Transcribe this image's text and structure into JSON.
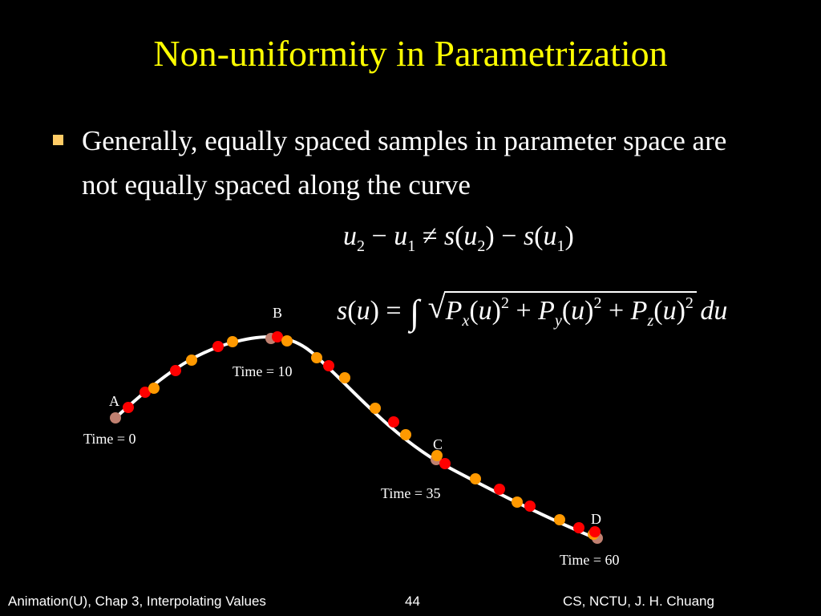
{
  "title": "Non-uniformity in Parametrization",
  "bullet": "Generally, equally spaced samples in parameter space are not equally spaced along the curve",
  "equation1": {
    "u": "u",
    "sub2": "2",
    "minus": "−",
    "sub1": "1",
    "neq": "≠",
    "s": "s",
    "lp": "(",
    "rp": ")"
  },
  "equation2": {
    "s": "s",
    "u": "u",
    "eq": "=",
    "integral": "∫",
    "P": "P",
    "x": "x",
    "y": "y",
    "z": "z",
    "sq": "2",
    "plus": "+",
    "du": "du"
  },
  "points": {
    "a": "A",
    "b": "B",
    "c": "C",
    "d": "D"
  },
  "time_labels": {
    "t0": "Time = 0",
    "t10": "Time = 10",
    "t35": "Time = 35",
    "t60": "Time = 60"
  },
  "colors": {
    "red_dot": "#ff0000",
    "orange_dot": "#ff9900",
    "key_dot": "#c08070",
    "curve": "#ffffff",
    "title": "#ffff00"
  },
  "footer": {
    "left": "Animation(U), Chap 3, Interpolating Values",
    "page": "44",
    "right": "CS, NCTU, J. H. Chuang"
  }
}
